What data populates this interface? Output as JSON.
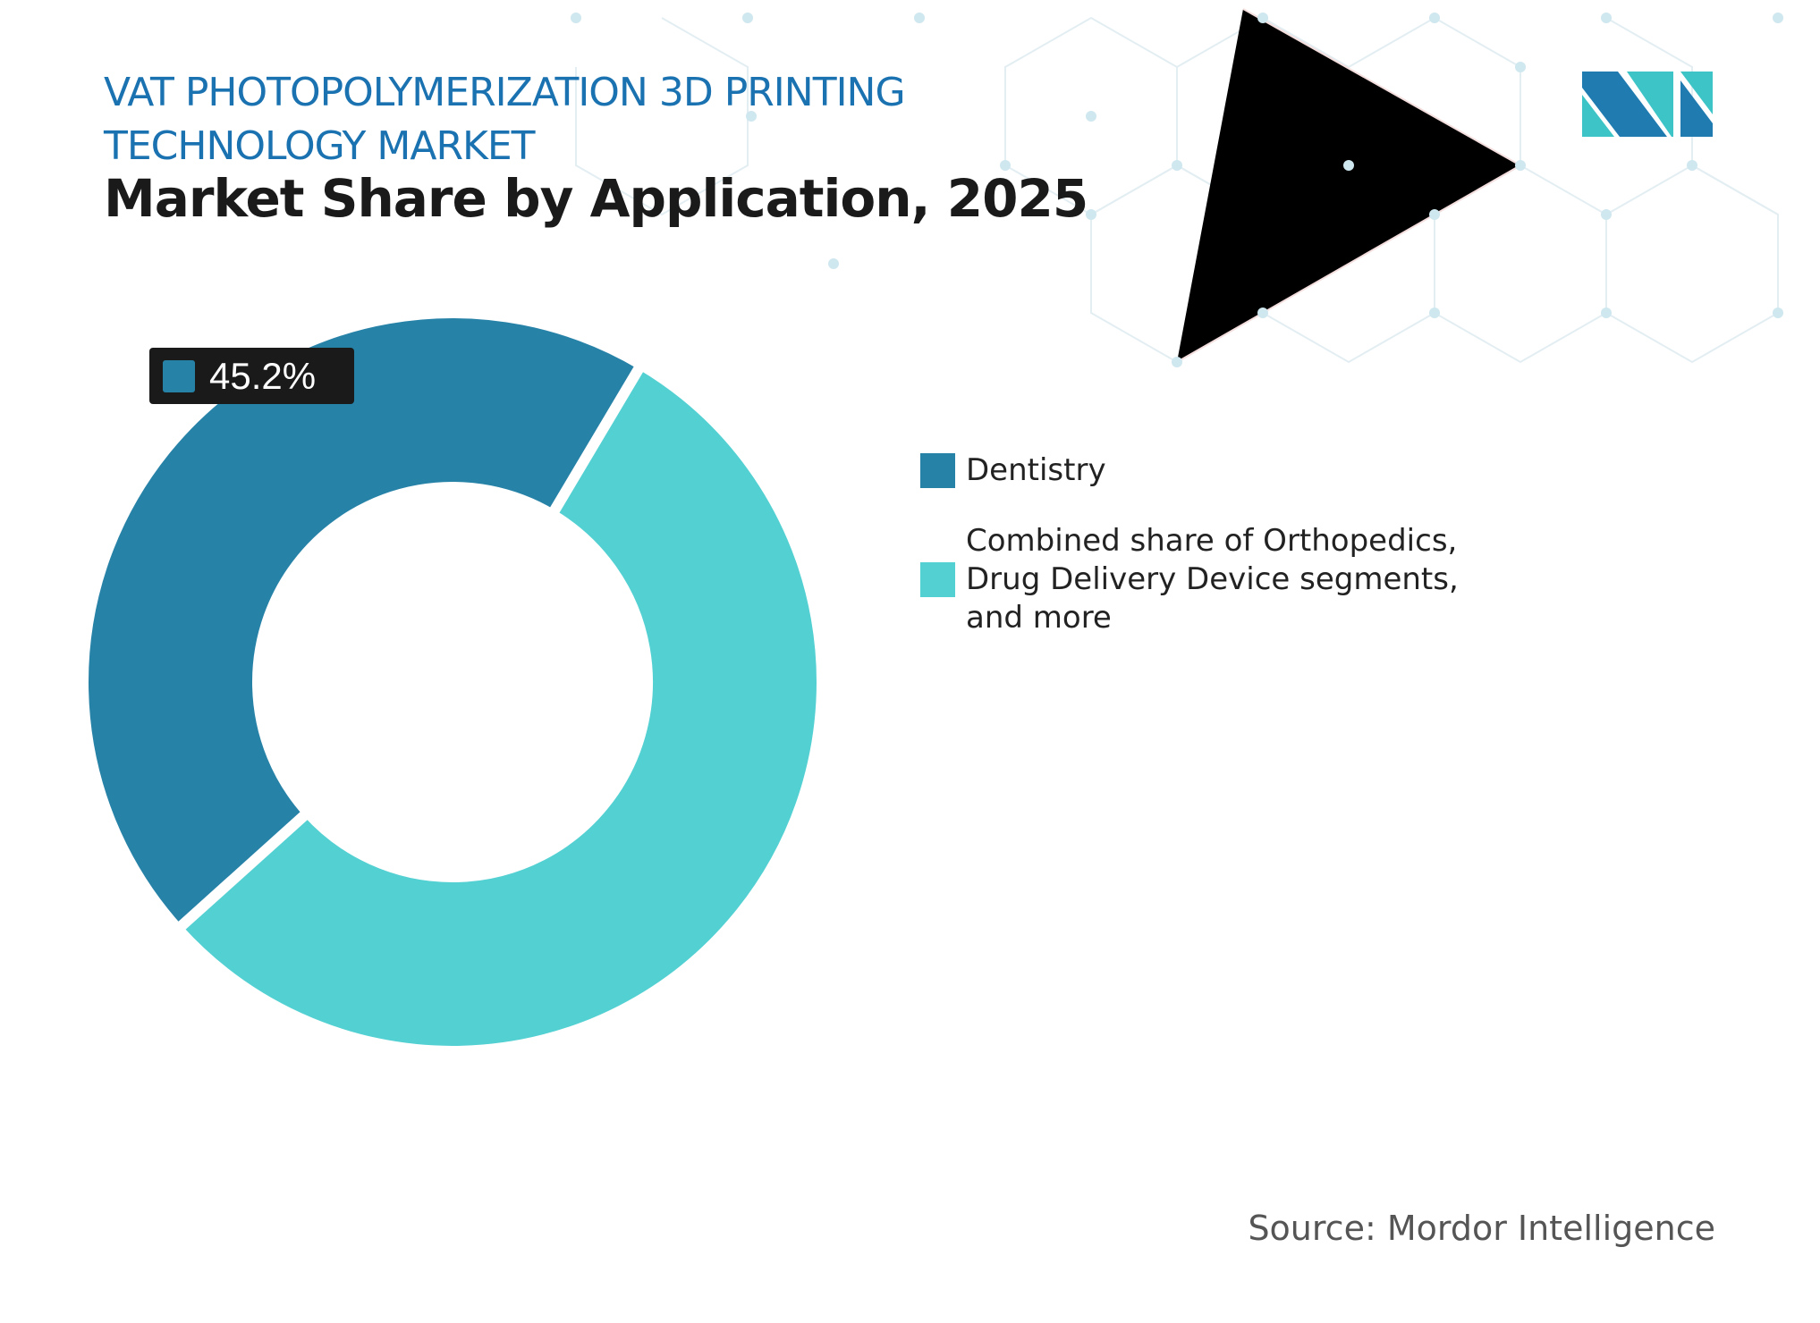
{
  "header": {
    "title_line1": "VAT PHOTOPOLYMERIZATION 3D PRINTING",
    "title_line2": "TECHNOLOGY MARKET",
    "subtitle": "Market Share by Application, 2025"
  },
  "chart_data": {
    "type": "pie",
    "variant": "donut",
    "title": "Market Share by Application, 2025",
    "categories": [
      "Dentistry",
      "Combined share of Orthopedics, Drug Delivery Device segments, and more"
    ],
    "values": [
      45.2,
      54.8
    ],
    "unit": "%",
    "colors": [
      "#2782a8",
      "#52d0d2"
    ],
    "data_labels": [
      {
        "category": "Dentistry",
        "text": "45.2%"
      }
    ],
    "legend_placement": "right"
  },
  "legend": [
    {
      "label": "Dentistry",
      "color": "#2782a8"
    },
    {
      "label": "Combined share of Orthopedics, Drug Delivery Device segments, and more",
      "color": "#52d0d2"
    }
  ],
  "data_label": "45.2%",
  "source": "Source: Mordor Intelligence",
  "logo": {
    "text": "Mordor Intelligence",
    "colors": [
      "#1f7bb0",
      "#3cc4c7"
    ]
  }
}
